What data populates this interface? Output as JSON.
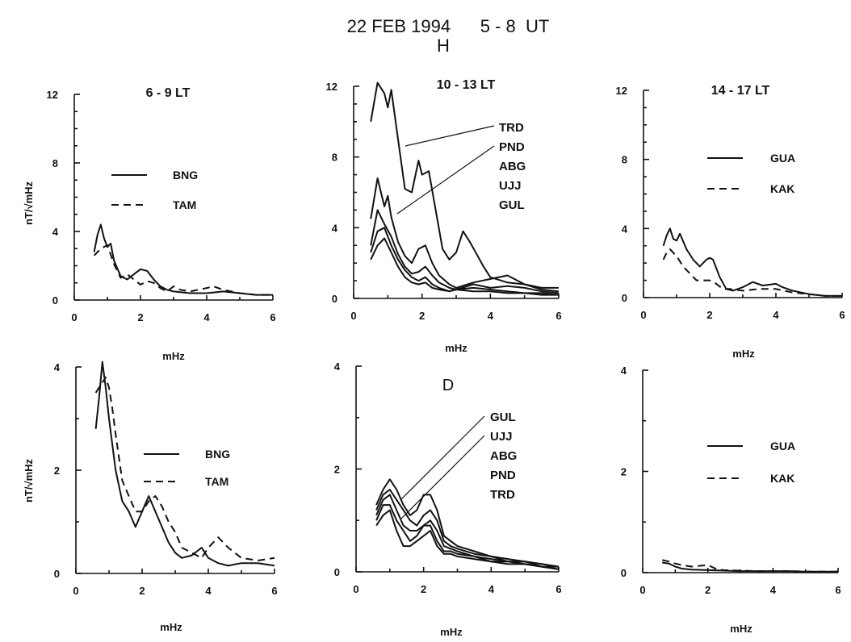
{
  "header": {
    "title": "22 FEB 1994      5 - 8  UT",
    "component": "H"
  },
  "chart_data": [
    {
      "id": "top-left",
      "type": "line",
      "title": "6 - 9 LT",
      "xlabel": "mHz",
      "ylabel": "nT/√mHz",
      "xlim": [
        0,
        6
      ],
      "ylim": [
        0,
        12
      ],
      "xticks": [
        "0",
        "2",
        "4",
        "6"
      ],
      "yticks": [
        "0",
        "4",
        "8",
        "12"
      ],
      "legend": "inside-left",
      "series": [
        {
          "name": "BNG",
          "style": "solid",
          "x": [
            0.6,
            0.7,
            0.8,
            0.9,
            1.0,
            1.1,
            1.2,
            1.4,
            1.6,
            1.8,
            2.0,
            2.2,
            2.4,
            2.6,
            2.8,
            3.0,
            3.5,
            4.0,
            4.5,
            5.0,
            5.5,
            6.0
          ],
          "y": [
            2.8,
            3.8,
            4.4,
            3.6,
            3.1,
            3.3,
            2.3,
            1.4,
            1.2,
            1.5,
            1.8,
            1.7,
            1.2,
            0.8,
            0.6,
            0.5,
            0.4,
            0.4,
            0.5,
            0.4,
            0.3,
            0.3
          ]
        },
        {
          "name": "TAM",
          "style": "dashed",
          "x": [
            0.6,
            0.8,
            1.0,
            1.2,
            1.4,
            1.6,
            1.8,
            2.0,
            2.2,
            2.4,
            2.6,
            2.8,
            3.0,
            3.2,
            3.5,
            4.0,
            4.2,
            4.5,
            5.0,
            5.5,
            6.0
          ],
          "y": [
            2.6,
            3.0,
            3.2,
            2.1,
            1.3,
            1.5,
            1.2,
            0.9,
            1.1,
            1.0,
            0.7,
            0.5,
            0.8,
            0.6,
            0.5,
            0.7,
            0.8,
            0.6,
            0.4,
            0.3,
            0.3
          ]
        }
      ]
    },
    {
      "id": "top-middle",
      "type": "line",
      "title": "10 - 13 LT",
      "xlabel": "mHz",
      "ylabel": "",
      "xlim": [
        0,
        6
      ],
      "ylim": [
        0,
        12
      ],
      "xticks": [
        "0",
        "2",
        "4",
        "6"
      ],
      "yticks": [
        "0",
        "4",
        "8",
        "12"
      ],
      "station_labels": [
        "TRD",
        "PND",
        "ABG",
        "UJJ",
        "GUL"
      ],
      "series": [
        {
          "name": "TRD",
          "style": "solid",
          "x": [
            0.5,
            0.7,
            0.9,
            1.0,
            1.1,
            1.3,
            1.5,
            1.7,
            1.9,
            2.0,
            2.2,
            2.4,
            2.6,
            2.8,
            3.0,
            3.2,
            3.4,
            3.6,
            3.8,
            4.0,
            4.5,
            5.0,
            5.5,
            6.0
          ],
          "y": [
            10.0,
            12.2,
            11.6,
            10.8,
            11.8,
            9.0,
            6.2,
            6.0,
            7.8,
            7.0,
            7.2,
            5.0,
            2.8,
            2.2,
            2.6,
            3.8,
            3.2,
            2.5,
            1.8,
            1.2,
            0.9,
            0.8,
            0.6,
            0.6
          ]
        },
        {
          "name": "PND",
          "style": "solid",
          "x": [
            0.5,
            0.7,
            0.9,
            1.0,
            1.1,
            1.3,
            1.5,
            1.7,
            1.9,
            2.1,
            2.3,
            2.5,
            2.8,
            3.0,
            3.5,
            4.0,
            4.5,
            5.0,
            5.5,
            6.0
          ],
          "y": [
            4.5,
            6.8,
            5.2,
            5.8,
            4.6,
            3.2,
            2.4,
            2.0,
            2.8,
            3.0,
            2.0,
            1.3,
            0.8,
            0.6,
            0.9,
            1.1,
            1.3,
            0.8,
            0.5,
            0.4
          ]
        },
        {
          "name": "ABG",
          "style": "solid",
          "x": [
            0.5,
            0.7,
            0.9,
            1.1,
            1.3,
            1.5,
            1.7,
            1.9,
            2.1,
            2.3,
            2.5,
            2.8,
            3.0,
            3.5,
            4.0,
            4.5,
            5.0,
            5.5,
            6.0
          ],
          "y": [
            3.0,
            5.0,
            4.2,
            3.5,
            2.5,
            1.8,
            1.4,
            1.5,
            1.8,
            1.3,
            0.9,
            0.6,
            0.5,
            0.8,
            0.6,
            0.7,
            0.6,
            0.4,
            0.3
          ]
        },
        {
          "name": "UJJ",
          "style": "solid",
          "x": [
            0.5,
            0.7,
            0.9,
            1.1,
            1.3,
            1.5,
            1.7,
            1.9,
            2.1,
            2.3,
            2.5,
            2.8,
            3.0,
            3.5,
            4.0,
            4.5,
            5.0,
            5.5,
            6.0
          ],
          "y": [
            2.6,
            3.8,
            4.0,
            3.0,
            2.2,
            1.6,
            1.2,
            1.0,
            1.2,
            0.8,
            0.6,
            0.4,
            0.5,
            0.6,
            0.5,
            0.4,
            0.3,
            0.3,
            0.2
          ]
        },
        {
          "name": "GUL",
          "style": "solid",
          "x": [
            0.5,
            0.7,
            0.9,
            1.1,
            1.3,
            1.5,
            1.7,
            1.9,
            2.1,
            2.3,
            2.5,
            2.8,
            3.0,
            3.5,
            4.0,
            4.5,
            5.0,
            5.5,
            6.0
          ],
          "y": [
            2.2,
            3.0,
            3.4,
            2.6,
            1.8,
            1.2,
            0.9,
            0.8,
            0.9,
            0.6,
            0.5,
            0.4,
            0.5,
            0.4,
            0.4,
            0.3,
            0.3,
            0.2,
            0.2
          ]
        }
      ]
    },
    {
      "id": "top-right",
      "type": "line",
      "title": "14 - 17 LT",
      "xlabel": "mHz",
      "ylabel": "",
      "xlim": [
        0,
        6
      ],
      "ylim": [
        0,
        12
      ],
      "xticks": [
        "0",
        "2",
        "4",
        "6"
      ],
      "yticks": [
        "0",
        "4",
        "8",
        "12"
      ],
      "legend": "inside-right",
      "series": [
        {
          "name": "GUA",
          "style": "solid",
          "x": [
            0.6,
            0.7,
            0.8,
            0.9,
            1.0,
            1.1,
            1.3,
            1.5,
            1.7,
            1.9,
            2.0,
            2.1,
            2.3,
            2.5,
            2.7,
            3.0,
            3.3,
            3.6,
            4.0,
            4.2,
            4.5,
            5.0,
            5.5,
            6.0
          ],
          "y": [
            3.0,
            3.6,
            4.0,
            3.4,
            3.3,
            3.7,
            2.8,
            2.2,
            1.8,
            2.2,
            2.3,
            2.2,
            1.2,
            0.5,
            0.4,
            0.6,
            0.9,
            0.7,
            0.8,
            0.6,
            0.4,
            0.2,
            0.1,
            0.1
          ]
        },
        {
          "name": "KAK",
          "style": "dashed",
          "x": [
            0.6,
            0.7,
            0.8,
            1.0,
            1.2,
            1.4,
            1.6,
            1.8,
            2.0,
            2.2,
            2.4,
            2.6,
            3.0,
            3.5,
            4.0,
            4.5,
            5.0,
            5.5,
            6.0
          ],
          "y": [
            2.2,
            2.6,
            2.8,
            2.4,
            1.8,
            1.4,
            1.0,
            1.0,
            1.0,
            0.8,
            0.5,
            0.5,
            0.4,
            0.5,
            0.5,
            0.3,
            0.2,
            0.1,
            0.1
          ]
        }
      ]
    },
    {
      "id": "bottom-left",
      "type": "line",
      "title": "",
      "xlabel": "mHz",
      "ylabel": "nT/√mHz",
      "xlim": [
        0,
        6
      ],
      "ylim": [
        0,
        4
      ],
      "xticks": [
        "0",
        "2",
        "4",
        "6"
      ],
      "yticks": [
        "0",
        "2",
        "4"
      ],
      "legend": "inside-right",
      "series": [
        {
          "name": "BNG",
          "style": "solid",
          "x": [
            0.6,
            0.7,
            0.8,
            0.9,
            1.0,
            1.1,
            1.2,
            1.4,
            1.6,
            1.8,
            2.0,
            2.2,
            2.4,
            2.6,
            2.8,
            3.0,
            3.2,
            3.5,
            3.8,
            4.0,
            4.3,
            4.6,
            5.0,
            5.5,
            6.0
          ],
          "y": [
            2.8,
            3.4,
            4.1,
            3.6,
            3.0,
            2.5,
            2.0,
            1.4,
            1.2,
            0.9,
            1.2,
            1.5,
            1.2,
            0.9,
            0.6,
            0.4,
            0.3,
            0.35,
            0.5,
            0.3,
            0.2,
            0.15,
            0.2,
            0.2,
            0.15
          ]
        },
        {
          "name": "TAM",
          "style": "dashed",
          "x": [
            0.6,
            0.7,
            0.8,
            0.9,
            1.0,
            1.1,
            1.2,
            1.4,
            1.6,
            1.8,
            2.0,
            2.2,
            2.4,
            2.6,
            2.8,
            3.0,
            3.2,
            3.5,
            3.8,
            4.0,
            4.3,
            4.6,
            5.0,
            5.5,
            6.0
          ],
          "y": [
            3.5,
            3.6,
            3.7,
            3.8,
            3.6,
            3.2,
            2.7,
            1.8,
            1.5,
            1.2,
            1.2,
            1.4,
            1.5,
            1.3,
            1.0,
            0.8,
            0.5,
            0.4,
            0.3,
            0.5,
            0.7,
            0.5,
            0.3,
            0.25,
            0.3
          ]
        }
      ]
    },
    {
      "id": "bottom-middle",
      "type": "line",
      "title": "",
      "xlabel": "mHz",
      "ylabel": "",
      "xlim": [
        0,
        6
      ],
      "ylim": [
        0,
        4
      ],
      "xticks": [
        "0",
        "2",
        "4",
        "6"
      ],
      "yticks": [
        "0",
        "2",
        "4"
      ],
      "annotation": "D",
      "station_labels": [
        "GUL",
        "UJJ",
        "ABG",
        "PND",
        "TRD"
      ],
      "series": [
        {
          "name": "GUL",
          "style": "solid",
          "x": [
            0.6,
            0.8,
            1.0,
            1.2,
            1.4,
            1.6,
            1.8,
            2.0,
            2.2,
            2.4,
            2.6,
            2.8,
            3.0,
            3.5,
            4.0,
            4.5,
            5.0,
            5.5,
            6.0
          ],
          "y": [
            1.3,
            1.6,
            1.8,
            1.6,
            1.3,
            1.1,
            1.2,
            1.5,
            1.5,
            1.2,
            0.7,
            0.6,
            0.5,
            0.4,
            0.3,
            0.25,
            0.2,
            0.15,
            0.1
          ]
        },
        {
          "name": "UJJ",
          "style": "solid",
          "x": [
            0.6,
            0.8,
            1.0,
            1.2,
            1.4,
            1.6,
            1.8,
            2.0,
            2.2,
            2.4,
            2.6,
            2.8,
            3.0,
            3.5,
            4.0,
            4.5,
            5.0,
            5.5,
            6.0
          ],
          "y": [
            1.2,
            1.5,
            1.6,
            1.4,
            1.2,
            1.0,
            0.9,
            1.1,
            1.2,
            1.0,
            0.6,
            0.5,
            0.45,
            0.35,
            0.3,
            0.2,
            0.2,
            0.15,
            0.1
          ]
        },
        {
          "name": "ABG",
          "style": "solid",
          "x": [
            0.6,
            0.8,
            1.0,
            1.2,
            1.4,
            1.6,
            1.8,
            2.0,
            2.2,
            2.4,
            2.6,
            2.8,
            3.0,
            3.5,
            4.0,
            4.5,
            5.0,
            5.5,
            6.0
          ],
          "y": [
            1.1,
            1.4,
            1.5,
            1.2,
            0.9,
            0.8,
            0.8,
            0.9,
            1.0,
            0.8,
            0.5,
            0.45,
            0.4,
            0.3,
            0.25,
            0.2,
            0.2,
            0.1,
            0.1
          ]
        },
        {
          "name": "PND",
          "style": "solid",
          "x": [
            0.6,
            0.8,
            1.0,
            1.2,
            1.4,
            1.6,
            1.8,
            2.0,
            2.2,
            2.4,
            2.6,
            2.8,
            3.0,
            3.5,
            4.0,
            4.5,
            5.0,
            5.5,
            6.0
          ],
          "y": [
            1.0,
            1.3,
            1.3,
            1.0,
            0.8,
            0.6,
            0.7,
            0.9,
            0.9,
            0.6,
            0.4,
            0.4,
            0.35,
            0.3,
            0.2,
            0.2,
            0.15,
            0.1,
            0.05
          ]
        },
        {
          "name": "TRD",
          "style": "solid",
          "x": [
            0.6,
            0.8,
            1.0,
            1.2,
            1.4,
            1.6,
            1.8,
            2.0,
            2.2,
            2.4,
            2.6,
            2.8,
            3.0,
            3.5,
            4.0,
            4.5,
            5.0,
            5.5,
            6.0
          ],
          "y": [
            0.9,
            1.1,
            1.2,
            0.8,
            0.5,
            0.5,
            0.6,
            0.7,
            0.8,
            0.5,
            0.35,
            0.35,
            0.3,
            0.25,
            0.2,
            0.15,
            0.15,
            0.1,
            0.05
          ]
        }
      ]
    },
    {
      "id": "bottom-right",
      "type": "line",
      "title": "",
      "xlabel": "mHz",
      "ylabel": "",
      "xlim": [
        0,
        6
      ],
      "ylim": [
        0,
        4
      ],
      "xticks": [
        "0",
        "2",
        "4",
        "6"
      ],
      "yticks": [
        "0",
        "2",
        "4"
      ],
      "legend": "inside-right",
      "series": [
        {
          "name": "GUA",
          "style": "solid",
          "x": [
            0.6,
            0.8,
            1.0,
            1.2,
            1.5,
            2.0,
            2.5,
            3.0,
            3.5,
            4.0,
            4.5,
            5.0,
            5.5,
            6.0
          ],
          "y": [
            0.2,
            0.18,
            0.12,
            0.08,
            0.06,
            0.05,
            0.04,
            0.03,
            0.03,
            0.03,
            0.03,
            0.02,
            0.02,
            0.02
          ]
        },
        {
          "name": "KAK",
          "style": "dashed",
          "x": [
            0.6,
            0.8,
            1.0,
            1.2,
            1.5,
            2.0,
            2.3,
            2.5,
            3.0,
            3.5,
            4.0,
            4.5,
            5.0,
            5.5,
            6.0
          ],
          "y": [
            0.25,
            0.22,
            0.18,
            0.15,
            0.12,
            0.15,
            0.06,
            0.05,
            0.04,
            0.03,
            0.03,
            0.03,
            0.02,
            0.02,
            0.02
          ]
        }
      ]
    }
  ]
}
